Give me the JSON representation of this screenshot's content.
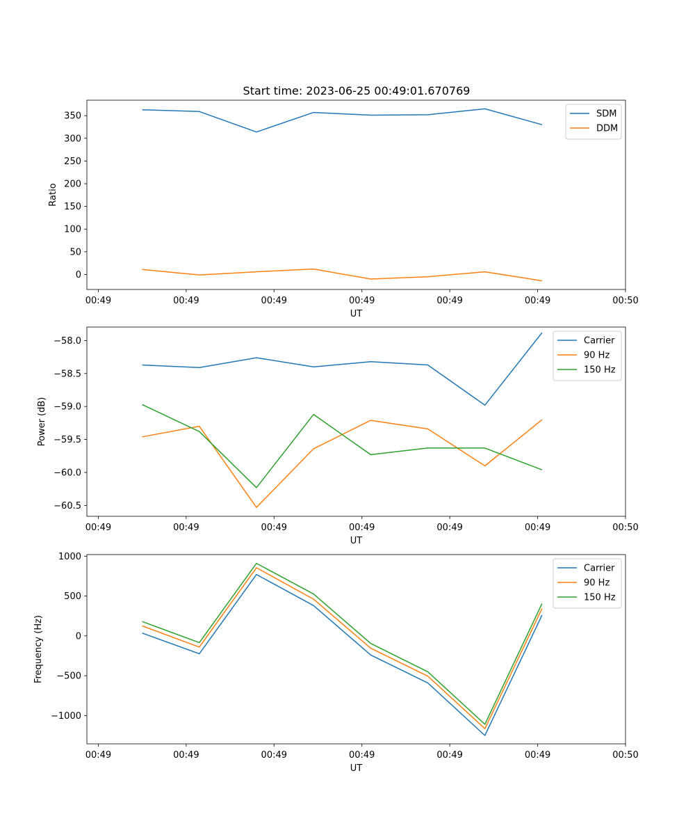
{
  "figure": {
    "title": "Start time: 2023-06-25 00:49:01.670769"
  },
  "chart_data": [
    {
      "type": "line",
      "title": "Start time: 2023-06-25 00:49:01.670769",
      "xlabel": "UT",
      "ylabel": "Ratio",
      "x_ticks": [
        "00:49",
        "00:49",
        "00:49",
        "00:49",
        "00:49",
        "00:49",
        "00:50"
      ],
      "x_tick_values": [
        0,
        1,
        2,
        3,
        4,
        5,
        6
      ],
      "xlim": [
        -0.13,
        6.0
      ],
      "ylim": [
        -33,
        384
      ],
      "y_ticks": [
        0,
        50,
        100,
        150,
        200,
        250,
        300,
        350
      ],
      "grid": false,
      "legend": "top-right",
      "x": [
        0.5,
        1.15,
        1.8,
        2.45,
        3.1,
        3.75,
        4.4,
        5.05
      ],
      "series": [
        {
          "name": "SDM",
          "color": "#1f77b4",
          "values": [
            363,
            359,
            314,
            357,
            351,
            352,
            365,
            330
          ]
        },
        {
          "name": "DDM",
          "color": "#ff7f0e",
          "values": [
            11,
            -1,
            6,
            12,
            -10,
            -5,
            6,
            -14
          ]
        }
      ]
    },
    {
      "type": "line",
      "xlabel": "UT",
      "ylabel": "Power (dB)",
      "x_ticks": [
        "00:49",
        "00:49",
        "00:49",
        "00:49",
        "00:49",
        "00:49",
        "00:50"
      ],
      "x_tick_values": [
        0,
        1,
        2,
        3,
        4,
        5,
        6
      ],
      "xlim": [
        -0.13,
        6.0
      ],
      "ylim": [
        -60.665,
        -57.795
      ],
      "y_ticks": [
        -60.5,
        -60.0,
        -59.5,
        -59.0,
        -58.5,
        -58.0
      ],
      "y_tick_labels": [
        "−60.5",
        "−60.0",
        "−59.5",
        "−59.0",
        "−58.5",
        "−58.0"
      ],
      "grid": false,
      "legend": "top-right",
      "x": [
        0.5,
        1.15,
        1.8,
        2.45,
        3.1,
        3.75,
        4.4,
        5.05
      ],
      "series": [
        {
          "name": "Carrier",
          "color": "#1f77b4",
          "values": [
            -58.37,
            -58.41,
            -58.26,
            -58.4,
            -58.32,
            -58.37,
            -58.98,
            -57.88
          ]
        },
        {
          "name": "90 Hz",
          "color": "#ff7f0e",
          "values": [
            -59.46,
            -59.3,
            -60.53,
            -59.64,
            -59.21,
            -59.34,
            -59.9,
            -59.2
          ]
        },
        {
          "name": "150 Hz",
          "color": "#2ca02c",
          "values": [
            -58.97,
            -59.38,
            -60.23,
            -59.12,
            -59.73,
            -59.63,
            -59.63,
            -59.96
          ]
        }
      ]
    },
    {
      "type": "line",
      "xlabel": "UT",
      "ylabel": "Frequency (Hz)",
      "x_ticks": [
        "00:49",
        "00:49",
        "00:49",
        "00:49",
        "00:49",
        "00:49",
        "00:50"
      ],
      "x_tick_values": [
        0,
        1,
        2,
        3,
        4,
        5,
        6
      ],
      "xlim": [
        -0.13,
        6.0
      ],
      "ylim": [
        -1355,
        1020
      ],
      "y_ticks": [
        -1000,
        -500,
        0,
        500,
        1000
      ],
      "y_tick_labels": [
        "−1000",
        "−500",
        "0",
        "500",
        "1000"
      ],
      "grid": false,
      "legend": "top-right",
      "x": [
        0.5,
        1.15,
        1.8,
        2.45,
        3.1,
        3.75,
        4.4,
        5.05
      ],
      "series": [
        {
          "name": "Carrier",
          "color": "#1f77b4",
          "values": [
            35,
            -225,
            770,
            380,
            -240,
            -590,
            -1250,
            260
          ]
        },
        {
          "name": "90 Hz",
          "color": "#ff7f0e",
          "values": [
            125,
            -140,
            855,
            460,
            -155,
            -505,
            -1165,
            345
          ]
        },
        {
          "name": "150 Hz",
          "color": "#2ca02c",
          "values": [
            180,
            -85,
            910,
            525,
            -95,
            -450,
            -1110,
            405
          ]
        }
      ]
    }
  ]
}
